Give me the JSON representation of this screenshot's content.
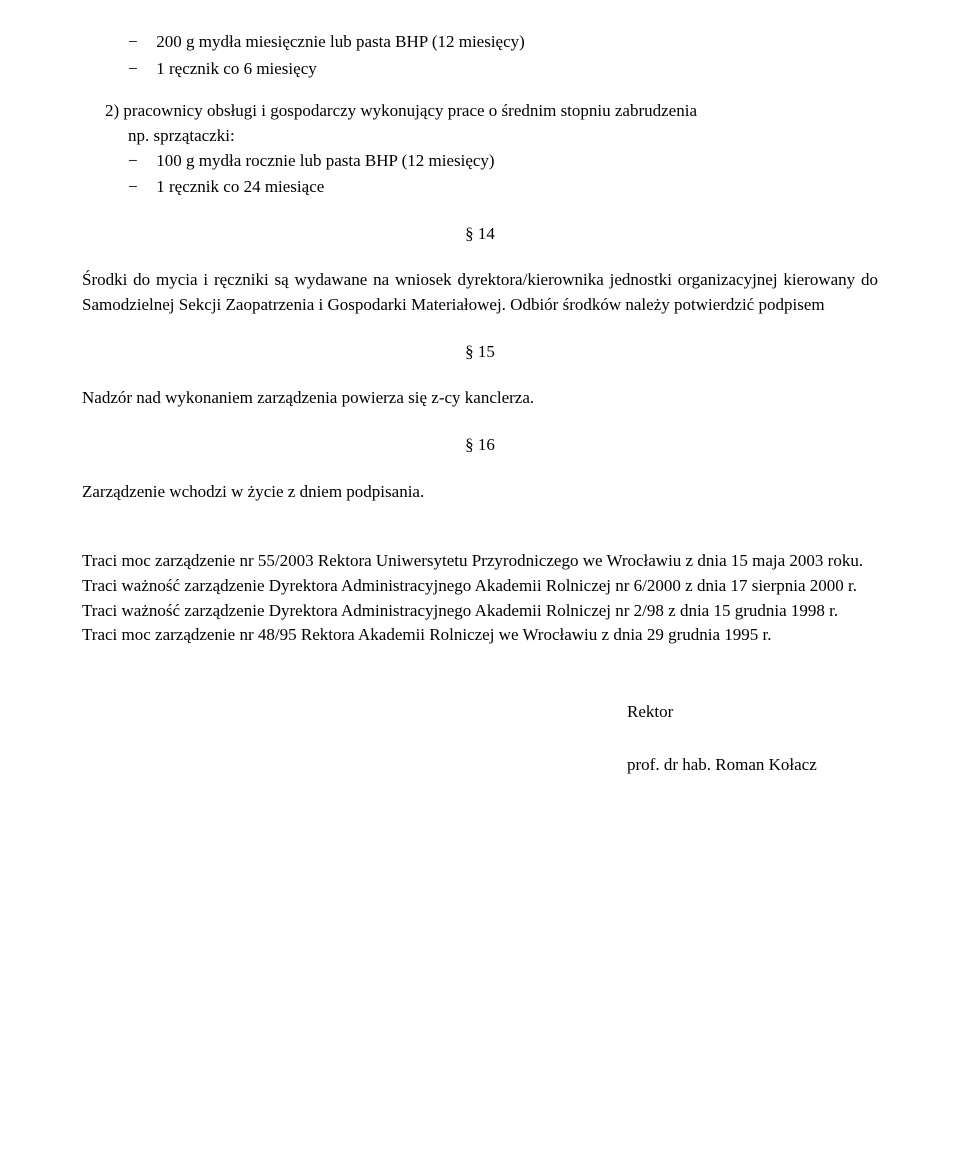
{
  "items": {
    "item1a": "200 g mydła miesięcznie lub pasta BHP (12 miesięcy)",
    "item1b": "1 ręcznik co 6 miesięcy",
    "numbered2_line1": "2) pracownicy obsługi i gospodarczy wykonujący prace o średnim stopniu zabrudzenia",
    "numbered2_line2": "np. sprzątaczki:",
    "item2a": "100 g mydła rocznie lub pasta BHP (12 miesięcy)",
    "item2b": "1 ręcznik co 24 miesiące"
  },
  "section14": "§ 14",
  "para14": "Środki do mycia i ręczniki są wydawane na wniosek dyrektora/kierownika jednostki organizacyjnej kierowany do Samodzielnej Sekcji Zaopatrzenia i Gospodarki Materiałowej. Odbiór środków należy potwierdzić podpisem",
  "section15": "§ 15",
  "para15": "Nadzór nad wykonaniem zarządzenia powierza się z-cy kanclerza.",
  "section16": "§ 16",
  "para16": "Zarządzenie wchodzi w życie z dniem podpisania.",
  "footer": {
    "p1": "Traci moc zarządzenie nr 55/2003 Rektora Uniwersytetu Przyrodniczego we Wrocławiu z dnia 15 maja 2003 roku.",
    "p2": "Traci ważność zarządzenie Dyrektora Administracyjnego Akademii Rolniczej nr 6/2000 z dnia 17 sierpnia 2000 r.",
    "p3": "Traci ważność zarządzenie Dyrektora Administracyjnego Akademii Rolniczej nr 2/98 z dnia 15 grudnia 1998 r.",
    "p4": "Traci moc zarządzenie nr 48/95 Rektora Akademii Rolniczej we Wrocławiu z dnia 29 grudnia 1995 r."
  },
  "signature": {
    "rektor": "Rektor",
    "name": "prof. dr hab. Roman Kołacz"
  }
}
